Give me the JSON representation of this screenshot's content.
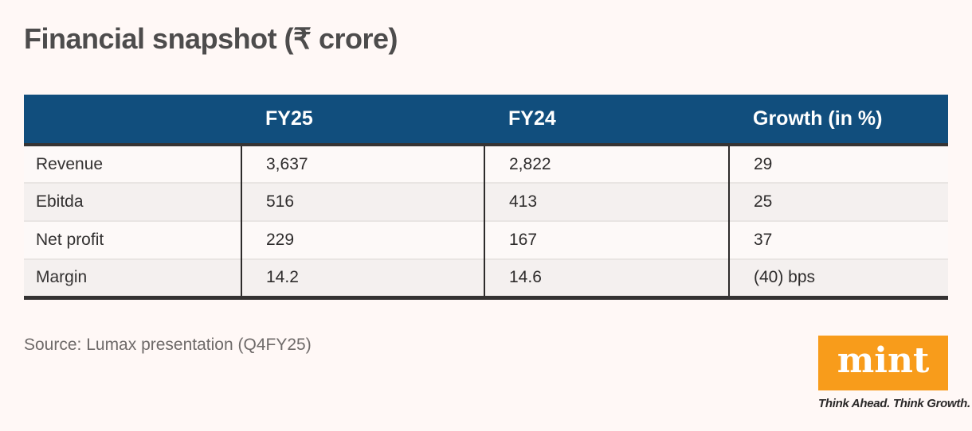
{
  "chart_data": {
    "type": "table",
    "title": "Financial snapshot (₹ crore)",
    "columns": [
      "",
      "FY25",
      "FY24",
      "Growth (in %)"
    ],
    "rows": [
      [
        "Revenue",
        "3,637",
        "2,822",
        "29"
      ],
      [
        "Ebitda",
        "516",
        "413",
        "25"
      ],
      [
        "Net profit",
        "229",
        "167",
        "37"
      ],
      [
        "Margin",
        "14.2",
        "14.6",
        "(40) bps"
      ]
    ],
    "source": "Source: Lumax presentation (Q4FY25)",
    "layout": {
      "header_bg": "#114e7d",
      "header_text_color": "#ffffff",
      "row_bg": "#fdf9f8",
      "row_alt_bg": "#f4f0ef",
      "thick_border_color": "#343232",
      "page_bg": "#fff8f6"
    }
  },
  "branding": {
    "logo_text": "mint",
    "tagline": "Think Ahead. Think Growth.",
    "logo_color": "#f89c1b"
  }
}
